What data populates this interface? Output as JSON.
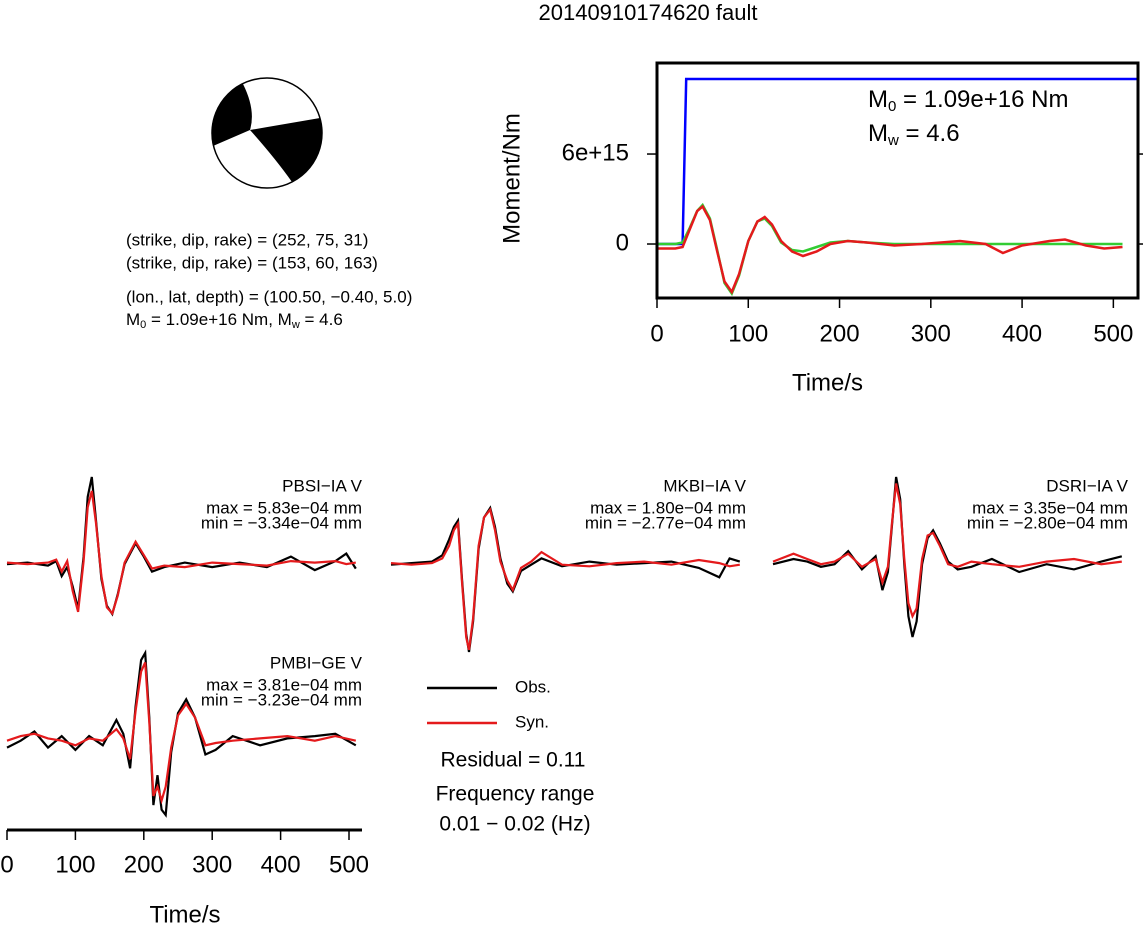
{
  "title": "20140910174620 fault",
  "mechanism": {
    "lines": [
      "(strike, dip, rake) = (252, 75, 31)",
      "(strike, dip, rake) = (153, 60, 163)",
      "(lon., lat, depth) = (100.50, −0.40, 5.0)"
    ],
    "moment": {
      "symbol": "M",
      "m0_sub": "0",
      "m0_text": " = 1.09e+16 Nm, ",
      "mw_sub": "w",
      "mw_text": " = 4.6"
    }
  },
  "chart_data": [
    {
      "type": "line",
      "xlabel": "Time/s",
      "ylabel": "Moment/Nm",
      "xlim": [
        0,
        527
      ],
      "xticks": [
        0,
        100,
        200,
        300,
        400,
        500
      ],
      "ylim": [
        -3600000000000000.0,
        1.207e+16
      ],
      "yticks": [
        0,
        {
          "value": 6000000000000000.0,
          "label": "6e+15"
        }
      ],
      "annotations": [
        {
          "symbol": "M",
          "sub": "0",
          "text": " = 1.09e+16 Nm"
        },
        {
          "symbol": "M",
          "sub": "w",
          "text": " = 4.6"
        }
      ],
      "series": [
        {
          "color": "#0000ff",
          "x": [
            0,
            28,
            32,
            527
          ],
          "values": [
            0,
            0,
            1.1e+16,
            1.1e+16
          ]
        },
        {
          "color": "#33cc33",
          "x": [
            0,
            20,
            28,
            36,
            44,
            50,
            58,
            66,
            74,
            82,
            90,
            100,
            110,
            118,
            126,
            136,
            148,
            160,
            175,
            190,
            209,
            230,
            260,
            290,
            332,
            360,
            379,
            400,
            430,
            447,
            470,
            490,
            510
          ],
          "values": [
            0,
            0,
            100000000000000.0,
            1100000000000000.0,
            2200000000000000.0,
            2600000000000000.0,
            1700000000000000.0,
            -400000000000000.0,
            -2600000000000000.0,
            -3300000000000000.0,
            -2100000000000000.0,
            200000000000000.0,
            1500000000000000.0,
            1700000000000000.0,
            1200000000000000.0,
            100000000000000.0,
            -400000000000000.0,
            -500000000000000.0,
            -200000000000000.0,
            100000000000000.0,
            200000000000000.0,
            100000000000000.0,
            0,
            0,
            0,
            0,
            0,
            0,
            0,
            0,
            0,
            0,
            0
          ]
        },
        {
          "color": "#e41a1c",
          "x": [
            0,
            20,
            28,
            36,
            44,
            50,
            58,
            66,
            74,
            82,
            90,
            100,
            110,
            118,
            126,
            136,
            148,
            160,
            175,
            190,
            209,
            230,
            260,
            290,
            332,
            360,
            379,
            400,
            430,
            447,
            470,
            490,
            510
          ],
          "values": [
            -300000000000000.0,
            -300000000000000.0,
            -200000000000000.0,
            1000000000000000.0,
            2200000000000000.0,
            2500000000000000.0,
            1600000000000000.0,
            -500000000000000.0,
            -2500000000000000.0,
            -3200000000000000.0,
            -2000000000000000.0,
            200000000000000.0,
            1500000000000000.0,
            1800000000000000.0,
            1300000000000000.0,
            200000000000000.0,
            -500000000000000.0,
            -800000000000000.0,
            -500000000000000.0,
            0,
            200000000000000.0,
            100000000000000.0,
            -100000000000000.0,
            0,
            200000000000000.0,
            0,
            -600000000000000.0,
            -100000000000000.0,
            200000000000000.0,
            300000000000000.0,
            -100000000000000.0,
            -300000000000000.0,
            -200000000000000.0
          ]
        }
      ]
    },
    {
      "type": "waveform",
      "xlabel": "Time/s",
      "xlim": [
        0,
        519
      ],
      "xticks": [
        0,
        100,
        200,
        300,
        400,
        500
      ],
      "residual": "Residual = 0.11",
      "notes": [
        "Frequency range",
        "0.01 − 0.02 (Hz)"
      ],
      "panels": [
        {
          "station": "PBSI−IA V",
          "max_label": "max = 5.83e−04 mm",
          "min_label": "min = −3.34e−04 mm",
          "ylim": [
            -0.000334,
            0.000583
          ],
          "x": [
            0,
            30,
            60,
            72,
            80,
            88,
            96,
            104,
            112,
            118,
            124,
            130,
            138,
            146,
            154,
            162,
            172,
            188,
            200,
            212,
            230,
            260,
            300,
            340,
            380,
            415,
            450,
            480,
            496,
            510
          ],
          "series": [
            {
              "name": "Obs.",
              "color": "#000000",
              "values": [
                0,
                1e-05,
                -1e-05,
                2e-05,
                -8e-05,
                -2e-05,
                -0.00015,
                -0.0003,
                5e-05,
                0.00045,
                0.000583,
                0.0003,
                -0.0001,
                -0.00028,
                -0.000334,
                -0.0002,
                0,
                0.00014,
                5e-05,
                -5e-05,
                -2e-05,
                1e-05,
                -2e-05,
                1e-05,
                -2e-05,
                5e-05,
                -4e-05,
                2e-05,
                7e-05,
                -3e-05
              ]
            },
            {
              "name": "Syn.",
              "color": "#e41a1c",
              "values": [
                1e-05,
                0,
                1e-05,
                3e-05,
                -5e-05,
                2e-05,
                -0.00018,
                -0.00032,
                2e-05,
                0.00038,
                0.00049,
                0.00028,
                -8e-05,
                -0.00029,
                -0.00033,
                -0.00021,
                1e-05,
                0.00015,
                6e-05,
                -3e-05,
                -1e-05,
                -2e-05,
                1e-05,
                0,
                -1e-05,
                2e-05,
                1e-05,
                2e-05,
                0,
                1e-05
              ]
            }
          ]
        },
        {
          "station": "MKBI−IA V",
          "max_label": "max = 1.80e−04 mm",
          "min_label": "min = −2.77e−04 mm",
          "ylim": [
            -0.000277,
            0.00018
          ],
          "x": [
            0,
            30,
            60,
            75,
            85,
            92,
            98,
            104,
            110,
            114,
            120,
            128,
            136,
            145,
            152,
            160,
            170,
            178,
            190,
            205,
            220,
            250,
            290,
            330,
            370,
            410,
            450,
            480,
            495,
            510
          ],
          "series": [
            {
              "name": "Obs.",
              "color": "#000000",
              "values": [
                0,
                5e-06,
                1e-05,
                3e-05,
                8e-05,
                0.00012,
                0.00014,
                -5e-05,
                -0.00022,
                -0.000277,
                -0.00018,
                5e-05,
                0.00015,
                0.00018,
                0.00012,
                2e-05,
                -6e-05,
                -8.5e-05,
                -2e-05,
                0,
                2e-05,
                -5e-06,
                1e-05,
                0,
                5e-06,
                1e-05,
                -1e-05,
                -4e-05,
                2e-05,
                1e-05
              ]
            },
            {
              "name": "Syn.",
              "color": "#e41a1c",
              "values": [
                5e-06,
                0,
                5e-06,
                2e-05,
                6e-05,
                0.00011,
                0.00013,
                -6e-05,
                -0.00023,
                -0.00027,
                -0.00017,
                6e-05,
                0.00015,
                0.000175,
                0.00011,
                1e-05,
                -5e-05,
                -8e-05,
                -1e-05,
                1e-05,
                4e-05,
                0,
                -5e-06,
                5e-06,
                1e-05,
                0,
                1.5e-05,
                5e-06,
                -5e-06,
                0
              ]
            }
          ]
        },
        {
          "station": "DSRI−IA V",
          "max_label": "max = 3.35e−04 mm",
          "min_label": "min = −2.80e−04 mm",
          "ylim": [
            -0.00028,
            0.000335
          ],
          "x": [
            0,
            30,
            50,
            70,
            90,
            110,
            130,
            150,
            160,
            168,
            174,
            180,
            186,
            192,
            198,
            204,
            210,
            218,
            226,
            234,
            244,
            256,
            270,
            290,
            320,
            360,
            400,
            440,
            480,
            510
          ],
          "series": [
            {
              "name": "Obs.",
              "color": "#000000",
              "values": [
                0,
                2e-05,
                1e-05,
                -1e-05,
                0,
                5e-05,
                -2e-05,
                3e-05,
                -0.0001,
                -3e-05,
                0.00015,
                0.000335,
                0.00025,
                0,
                -0.0002,
                -0.00028,
                -0.00022,
                0,
                0.0001,
                0.00013,
                8e-05,
                1e-05,
                -2e-05,
                -1e-05,
                2e-05,
                -3e-05,
                0,
                -2e-05,
                1e-05,
                3e-05
              ]
            },
            {
              "name": "Syn.",
              "color": "#e41a1c",
              "values": [
                1e-05,
                4e-05,
                2e-05,
                0,
                1e-05,
                4e-05,
                -1e-05,
                2e-05,
                -7e-05,
                -1e-05,
                0.00016,
                0.00031,
                0.00023,
                2e-05,
                -0.00015,
                -0.0002,
                -0.00017,
                2e-05,
                0.00011,
                0.00012,
                7e-05,
                0,
                -1e-05,
                1e-05,
                0,
                -1e-05,
                1e-05,
                2e-05,
                0,
                1e-05
              ]
            }
          ]
        },
        {
          "station": "PMBI−GE V",
          "max_label": "max = 3.81e−04 mm",
          "min_label": "min = −3.23e−04 mm",
          "ylim": [
            -0.000323,
            0.000381
          ],
          "x": [
            0,
            20,
            40,
            60,
            80,
            100,
            120,
            140,
            160,
            170,
            180,
            188,
            196,
            202,
            208,
            214,
            220,
            226,
            232,
            240,
            250,
            262,
            275,
            290,
            305,
            330,
            370,
            410,
            450,
            480,
            510
          ],
          "series": [
            {
              "name": "Obs.",
              "color": "#000000",
              "values": [
                -3e-05,
                0,
                4e-05,
                -3e-05,
                2e-05,
                -4e-05,
                2e-05,
                -2e-05,
                9e-05,
                3e-05,
                -0.00012,
                0.00015,
                0.00035,
                0.000381,
                0.0001,
                -0.00028,
                -0.00015,
                -0.0003,
                -0.000323,
                -5e-05,
                0.00012,
                0.00018,
                0.0001,
                -6e-05,
                -4e-05,
                2e-05,
                -2e-05,
                1e-05,
                2e-05,
                3e-05,
                -2e-05
              ]
            },
            {
              "name": "Syn.",
              "color": "#e41a1c",
              "values": [
                0,
                2e-05,
                3e-05,
                1e-05,
                0,
                -2e-05,
                1e-05,
                0,
                5e-05,
                1e-05,
                -8e-05,
                0.00013,
                0.0003,
                0.00034,
                8e-05,
                -0.00024,
                -0.0002,
                -0.00026,
                -0.0002,
                -3e-05,
                0.00011,
                0.00016,
                0.0001,
                -2e-05,
                -1e-05,
                0,
                1e-05,
                2e-05,
                0,
                2e-05,
                0
              ]
            }
          ]
        }
      ]
    }
  ]
}
